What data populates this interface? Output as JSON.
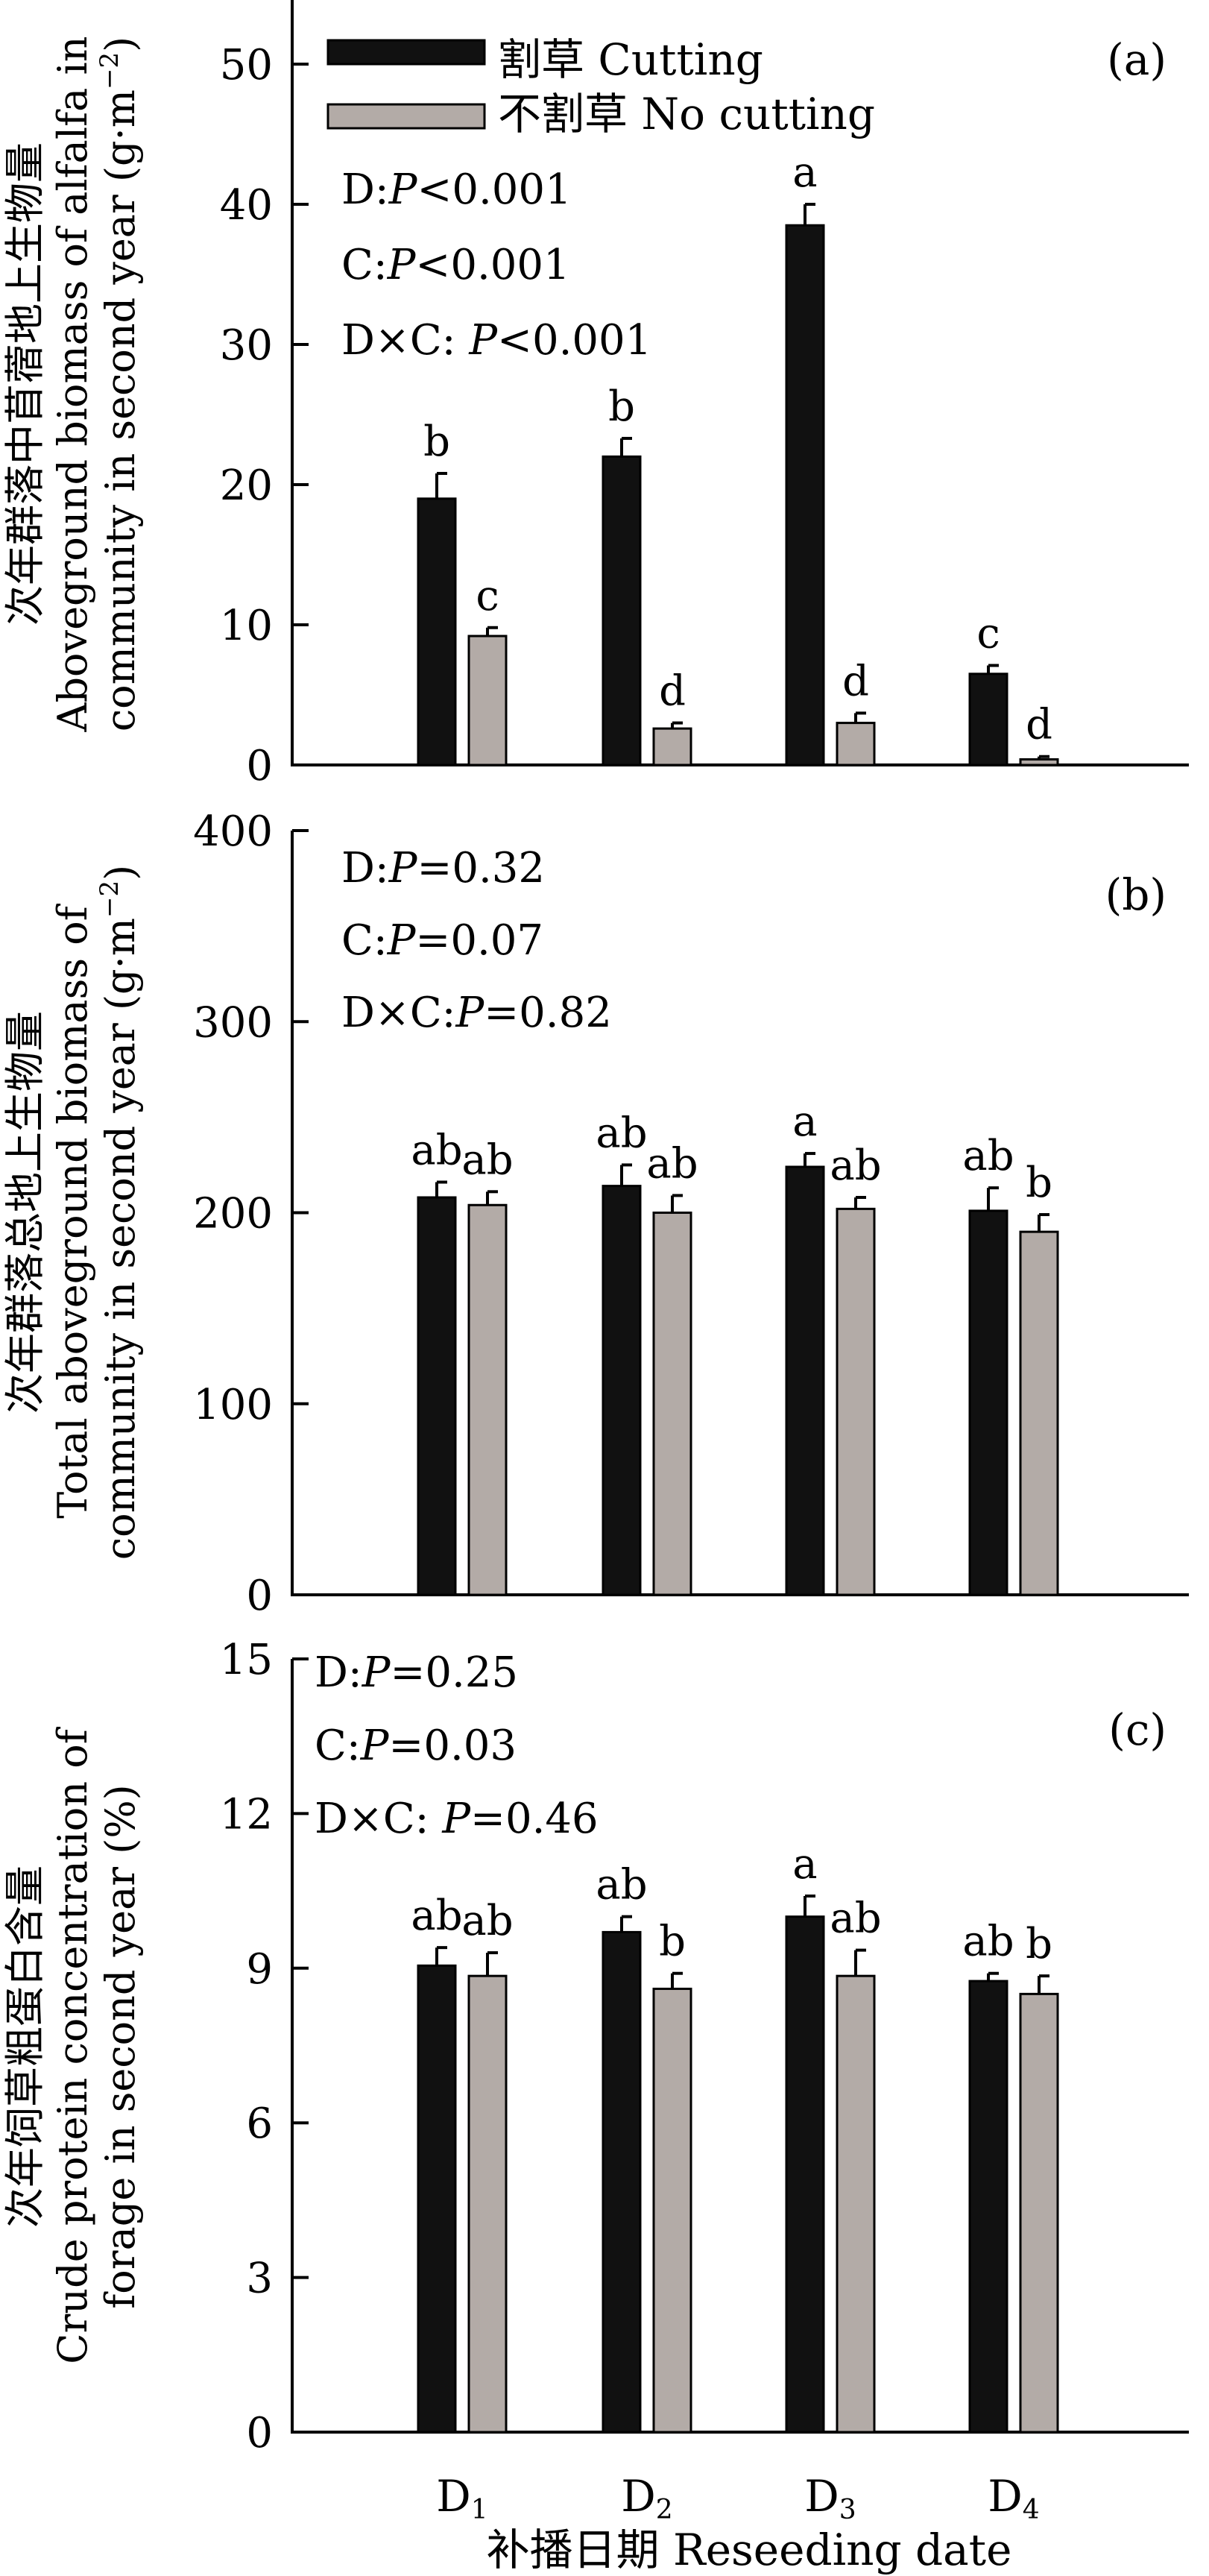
{
  "colors": {
    "cutting": "#111111",
    "no_cutting": "#b3aba7",
    "axis": "#000000"
  },
  "legend": {
    "cutting": "割草 Cutting",
    "no_cutting": "不割草 No cutting"
  },
  "xaxis": {
    "label": "补播日期 Reseeding date",
    "ticks": [
      {
        "main": "D",
        "sub": "1"
      },
      {
        "main": "D",
        "sub": "2"
      },
      {
        "main": "D",
        "sub": "3"
      },
      {
        "main": "D",
        "sub": "4"
      }
    ]
  },
  "chart_data": [
    {
      "type": "bar",
      "panel": "(a)",
      "categories": [
        "D1",
        "D2",
        "D3",
        "D4"
      ],
      "ylabel_cn": "次年群落中苜蓿地上生物量",
      "ylabel_en1": "Aboveground biomass of alfalfa  in",
      "ylabel_en2": "community in second year (g·m",
      "ylabel_sup": "−2",
      "ylabel_close": ")",
      "ylim": [
        0,
        55
      ],
      "yticks": [
        0,
        10,
        20,
        30,
        40,
        50
      ],
      "series": [
        {
          "name": "割草 Cutting",
          "values": [
            19.0,
            22.0,
            38.5,
            6.5
          ],
          "errors": [
            1.8,
            1.3,
            1.5,
            0.6
          ],
          "letters": [
            "b",
            "b",
            "a",
            "c"
          ]
        },
        {
          "name": "不割草 No cutting",
          "values": [
            9.2,
            2.6,
            3.0,
            0.4
          ],
          "errors": [
            0.6,
            0.4,
            0.7,
            0.2
          ],
          "letters": [
            "c",
            "d",
            "d",
            "d"
          ]
        }
      ],
      "stats": [
        {
          "label": "D:",
          "p": "P",
          "rest": "<0.001"
        },
        {
          "label": "C:",
          "p": "P",
          "rest": "<0.001"
        },
        {
          "label": "D×C: ",
          "p": "P",
          "rest": "<0.001"
        }
      ]
    },
    {
      "type": "bar",
      "panel": "(b)",
      "categories": [
        "D1",
        "D2",
        "D3",
        "D4"
      ],
      "ylabel_cn": "次年群落总地上生物量",
      "ylabel_en1": "Total aboveground biomass of",
      "ylabel_en2": "community in second year (g·m",
      "ylabel_sup": "−2",
      "ylabel_close": ")",
      "ylim": [
        0,
        400
      ],
      "yticks": [
        0,
        100,
        200,
        300,
        400
      ],
      "series": [
        {
          "name": "割草 Cutting",
          "values": [
            208,
            214,
            224,
            201
          ],
          "errors": [
            8,
            11,
            7,
            12
          ],
          "letters": [
            "ab",
            "ab",
            "a",
            "ab"
          ]
        },
        {
          "name": "不割草 No cutting",
          "values": [
            204,
            200,
            202,
            190
          ],
          "errors": [
            7,
            9,
            6,
            9
          ],
          "letters": [
            "ab",
            "ab",
            "ab",
            "b"
          ]
        }
      ],
      "stats": [
        {
          "label": "D:",
          "p": "P",
          "rest": "=0.32"
        },
        {
          "label": "C:",
          "p": "P",
          "rest": "=0.07"
        },
        {
          "label": "D×C:",
          "p": "P",
          "rest": "=0.82"
        }
      ]
    },
    {
      "type": "bar",
      "panel": "(c)",
      "categories": [
        "D1",
        "D2",
        "D3",
        "D4"
      ],
      "ylabel_cn": "次年饲草粗蛋白含量",
      "ylabel_en1": "Crude protein concentration of",
      "ylabel_en2": "forage in second year (%)",
      "ylabel_sup": "",
      "ylabel_close": "",
      "ylim": [
        0,
        15
      ],
      "yticks": [
        0,
        3,
        6,
        9,
        12,
        15
      ],
      "series": [
        {
          "name": "割草 Cutting",
          "values": [
            9.05,
            9.7,
            10.0,
            8.75
          ],
          "errors": [
            0.35,
            0.3,
            0.4,
            0.15
          ],
          "letters": [
            "ab",
            "ab",
            "a",
            "ab"
          ]
        },
        {
          "name": "不割草 No cutting",
          "values": [
            8.85,
            8.6,
            8.85,
            8.5
          ],
          "errors": [
            0.45,
            0.3,
            0.5,
            0.35
          ],
          "letters": [
            "ab",
            "b",
            "ab",
            "b"
          ]
        }
      ],
      "stats": [
        {
          "label": "D:",
          "p": "P",
          "rest": "=0.25"
        },
        {
          "label": "C:",
          "p": "P",
          "rest": "=0.03"
        },
        {
          "label": "D×C: ",
          "p": "P",
          "rest": "=0.46"
        }
      ]
    }
  ]
}
